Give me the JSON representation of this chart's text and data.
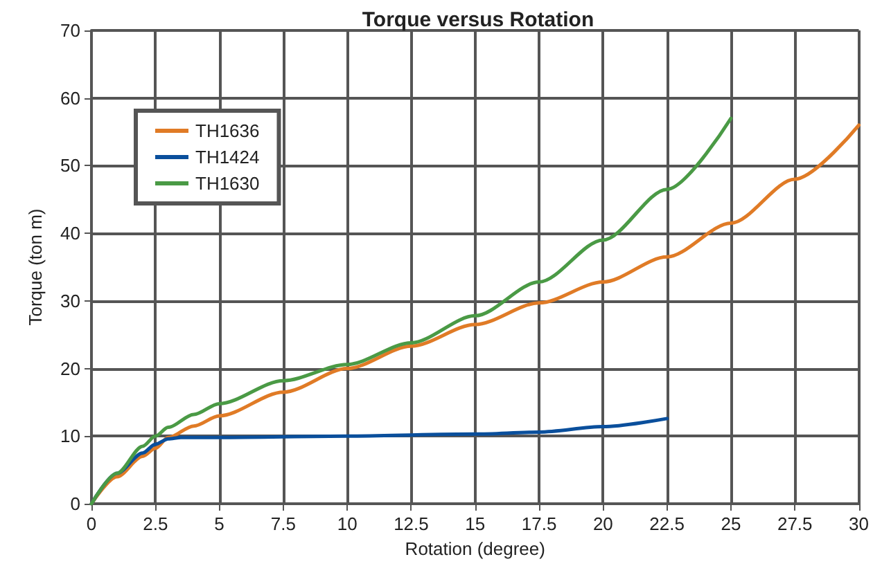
{
  "chart_data": {
    "type": "line",
    "title": "Torque versus Rotation",
    "xlabel": "Rotation (degree)",
    "ylabel": "Torque (ton m)",
    "xlim": [
      0,
      30
    ],
    "xticks": [
      0,
      2.5,
      5,
      7.5,
      10,
      12.5,
      15,
      17.5,
      20,
      22.5,
      25,
      27.5,
      30
    ],
    "ylim": [
      0,
      70
    ],
    "yticks": [
      0,
      10,
      20,
      30,
      40,
      50,
      60,
      70
    ],
    "grid": true,
    "legend": "top left",
    "marker": "none",
    "line_style": "solid",
    "series": [
      {
        "name": "TH1636",
        "color": "#e07b26",
        "x": [
          0,
          1,
          2,
          2.5,
          3,
          4,
          5,
          7.5,
          10,
          12.5,
          15,
          17.5,
          20,
          22.5,
          25,
          27.5,
          30
        ],
        "values": [
          0,
          4,
          7,
          8.2,
          9.8,
          11.5,
          13,
          16.5,
          20,
          23.3,
          26.5,
          29.7,
          32.8,
          36.5,
          41.5,
          48,
          56
        ]
      },
      {
        "name": "TH1424",
        "color": "#0a4f9c",
        "x": [
          0,
          1,
          2,
          2.5,
          3,
          3.5,
          5,
          10,
          15,
          17.5,
          20,
          22.5
        ],
        "values": [
          0,
          4.5,
          7.5,
          8.8,
          9.6,
          9.8,
          9.8,
          10,
          10.3,
          10.6,
          11.4,
          12.6
        ]
      },
      {
        "name": "TH1630",
        "color": "#4a9a45",
        "x": [
          0,
          1,
          2,
          2.5,
          3,
          4,
          5,
          7.5,
          10,
          12.5,
          15,
          17.5,
          20,
          22.5,
          25
        ],
        "values": [
          0,
          4.5,
          8.5,
          10,
          11.3,
          13.2,
          14.8,
          18.2,
          20.6,
          23.8,
          27.8,
          32.8,
          39,
          46.5,
          57
        ]
      }
    ]
  }
}
